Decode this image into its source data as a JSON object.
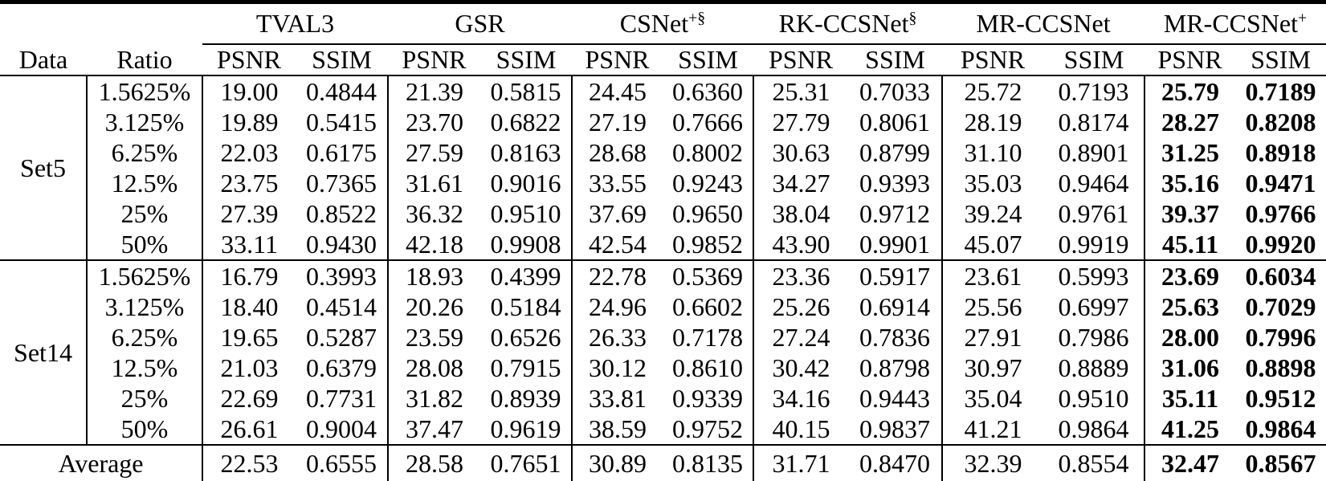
{
  "table": {
    "col_headers": {
      "data": "Data",
      "ratio": "Ratio",
      "psnr": "PSNR",
      "ssim": "SSIM"
    },
    "methods": [
      {
        "name": "TVAL3",
        "sup": ""
      },
      {
        "name": "GSR",
        "sup": ""
      },
      {
        "name": "CSNet",
        "sup": "+§"
      },
      {
        "name": "RK-CCSNet",
        "sup": "§"
      },
      {
        "name": "MR-CCSNet",
        "sup": ""
      },
      {
        "name": "MR-CCSNet",
        "sup": "+"
      }
    ],
    "groups": [
      {
        "dataset": "Set5",
        "rows": [
          {
            "ratio": "1.5625%",
            "values": [
              [
                "19.00",
                "0.4844"
              ],
              [
                "21.39",
                "0.5815"
              ],
              [
                "24.45",
                "0.6360"
              ],
              [
                "25.31",
                "0.7033"
              ],
              [
                "25.72",
                "0.7193"
              ],
              [
                "25.79",
                "0.7189"
              ]
            ]
          },
          {
            "ratio": "3.125%",
            "values": [
              [
                "19.89",
                "0.5415"
              ],
              [
                "23.70",
                "0.6822"
              ],
              [
                "27.19",
                "0.7666"
              ],
              [
                "27.79",
                "0.8061"
              ],
              [
                "28.19",
                "0.8174"
              ],
              [
                "28.27",
                "0.8208"
              ]
            ]
          },
          {
            "ratio": "6.25%",
            "values": [
              [
                "22.03",
                "0.6175"
              ],
              [
                "27.59",
                "0.8163"
              ],
              [
                "28.68",
                "0.8002"
              ],
              [
                "30.63",
                "0.8799"
              ],
              [
                "31.10",
                "0.8901"
              ],
              [
                "31.25",
                "0.8918"
              ]
            ]
          },
          {
            "ratio": "12.5%",
            "values": [
              [
                "23.75",
                "0.7365"
              ],
              [
                "31.61",
                "0.9016"
              ],
              [
                "33.55",
                "0.9243"
              ],
              [
                "34.27",
                "0.9393"
              ],
              [
                "35.03",
                "0.9464"
              ],
              [
                "35.16",
                "0.9471"
              ]
            ]
          },
          {
            "ratio": "25%",
            "values": [
              [
                "27.39",
                "0.8522"
              ],
              [
                "36.32",
                "0.9510"
              ],
              [
                "37.69",
                "0.9650"
              ],
              [
                "38.04",
                "0.9712"
              ],
              [
                "39.24",
                "0.9761"
              ],
              [
                "39.37",
                "0.9766"
              ]
            ]
          },
          {
            "ratio": "50%",
            "values": [
              [
                "33.11",
                "0.9430"
              ],
              [
                "42.18",
                "0.9908"
              ],
              [
                "42.54",
                "0.9852"
              ],
              [
                "43.90",
                "0.9901"
              ],
              [
                "45.07",
                "0.9919"
              ],
              [
                "45.11",
                "0.9920"
              ]
            ]
          }
        ]
      },
      {
        "dataset": "Set14",
        "rows": [
          {
            "ratio": "1.5625%",
            "values": [
              [
                "16.79",
                "0.3993"
              ],
              [
                "18.93",
                "0.4399"
              ],
              [
                "22.78",
                "0.5369"
              ],
              [
                "23.36",
                "0.5917"
              ],
              [
                "23.61",
                "0.5993"
              ],
              [
                "23.69",
                "0.6034"
              ]
            ]
          },
          {
            "ratio": "3.125%",
            "values": [
              [
                "18.40",
                "0.4514"
              ],
              [
                "20.26",
                "0.5184"
              ],
              [
                "24.96",
                "0.6602"
              ],
              [
                "25.26",
                "0.6914"
              ],
              [
                "25.56",
                "0.6997"
              ],
              [
                "25.63",
                "0.7029"
              ]
            ]
          },
          {
            "ratio": "6.25%",
            "values": [
              [
                "19.65",
                "0.5287"
              ],
              [
                "23.59",
                "0.6526"
              ],
              [
                "26.33",
                "0.7178"
              ],
              [
                "27.24",
                "0.7836"
              ],
              [
                "27.91",
                "0.7986"
              ],
              [
                "28.00",
                "0.7996"
              ]
            ]
          },
          {
            "ratio": "12.5%",
            "values": [
              [
                "21.03",
                "0.6379"
              ],
              [
                "28.08",
                "0.7915"
              ],
              [
                "30.12",
                "0.8610"
              ],
              [
                "30.42",
                "0.8798"
              ],
              [
                "30.97",
                "0.8889"
              ],
              [
                "31.06",
                "0.8898"
              ]
            ]
          },
          {
            "ratio": "25%",
            "values": [
              [
                "22.69",
                "0.7731"
              ],
              [
                "31.82",
                "0.8939"
              ],
              [
                "33.81",
                "0.9339"
              ],
              [
                "34.16",
                "0.9443"
              ],
              [
                "35.04",
                "0.9510"
              ],
              [
                "35.11",
                "0.9512"
              ]
            ]
          },
          {
            "ratio": "50%",
            "values": [
              [
                "26.61",
                "0.9004"
              ],
              [
                "37.47",
                "0.9619"
              ],
              [
                "38.59",
                "0.9752"
              ],
              [
                "40.15",
                "0.9837"
              ],
              [
                "41.21",
                "0.9864"
              ],
              [
                "41.25",
                "0.9864"
              ]
            ]
          }
        ]
      }
    ],
    "average": {
      "label": "Average",
      "values": [
        [
          "22.53",
          "0.6555"
        ],
        [
          "28.58",
          "0.7651"
        ],
        [
          "30.89",
          "0.8135"
        ],
        [
          "31.71",
          "0.8470"
        ],
        [
          "32.39",
          "0.8554"
        ],
        [
          "32.47",
          "0.8567"
        ]
      ]
    }
  }
}
